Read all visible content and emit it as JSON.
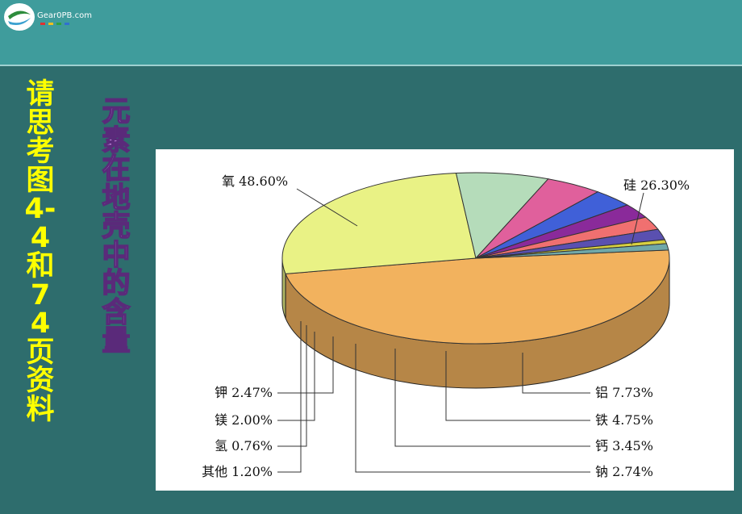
{
  "header": {
    "logo_text": "Gear0PB.com"
  },
  "side_prompt": "请思考图4-4和74页资料",
  "chart_heading": "元素在地壳中的含量",
  "chart_data": {
    "type": "pie",
    "slices": [
      {
        "label": "氧 48.60%",
        "value": 48.6,
        "color": "#f2b25e"
      },
      {
        "label": "硅 26.30%",
        "value": 26.3,
        "color": "#e9f285"
      },
      {
        "label": "铝 7.73%",
        "value": 7.73,
        "color": "#b5dcba"
      },
      {
        "label": "铁 4.75%",
        "value": 4.75,
        "color": "#e0609c"
      },
      {
        "label": "钙 3.45%",
        "value": 3.45,
        "color": "#4060d8"
      },
      {
        "label": "钠 2.74%",
        "value": 2.74,
        "color": "#8a2a9a"
      },
      {
        "label": "钾 2.47%",
        "value": 2.47,
        "color": "#f07070"
      },
      {
        "label": "镁 2.00%",
        "value": 2.0,
        "color": "#5a50b0"
      },
      {
        "label": "氢 0.76%",
        "value": 0.76,
        "color": "#d8d040"
      },
      {
        "label": "其他 1.20%",
        "value": 1.2,
        "color": "#70a8a8"
      }
    ]
  }
}
